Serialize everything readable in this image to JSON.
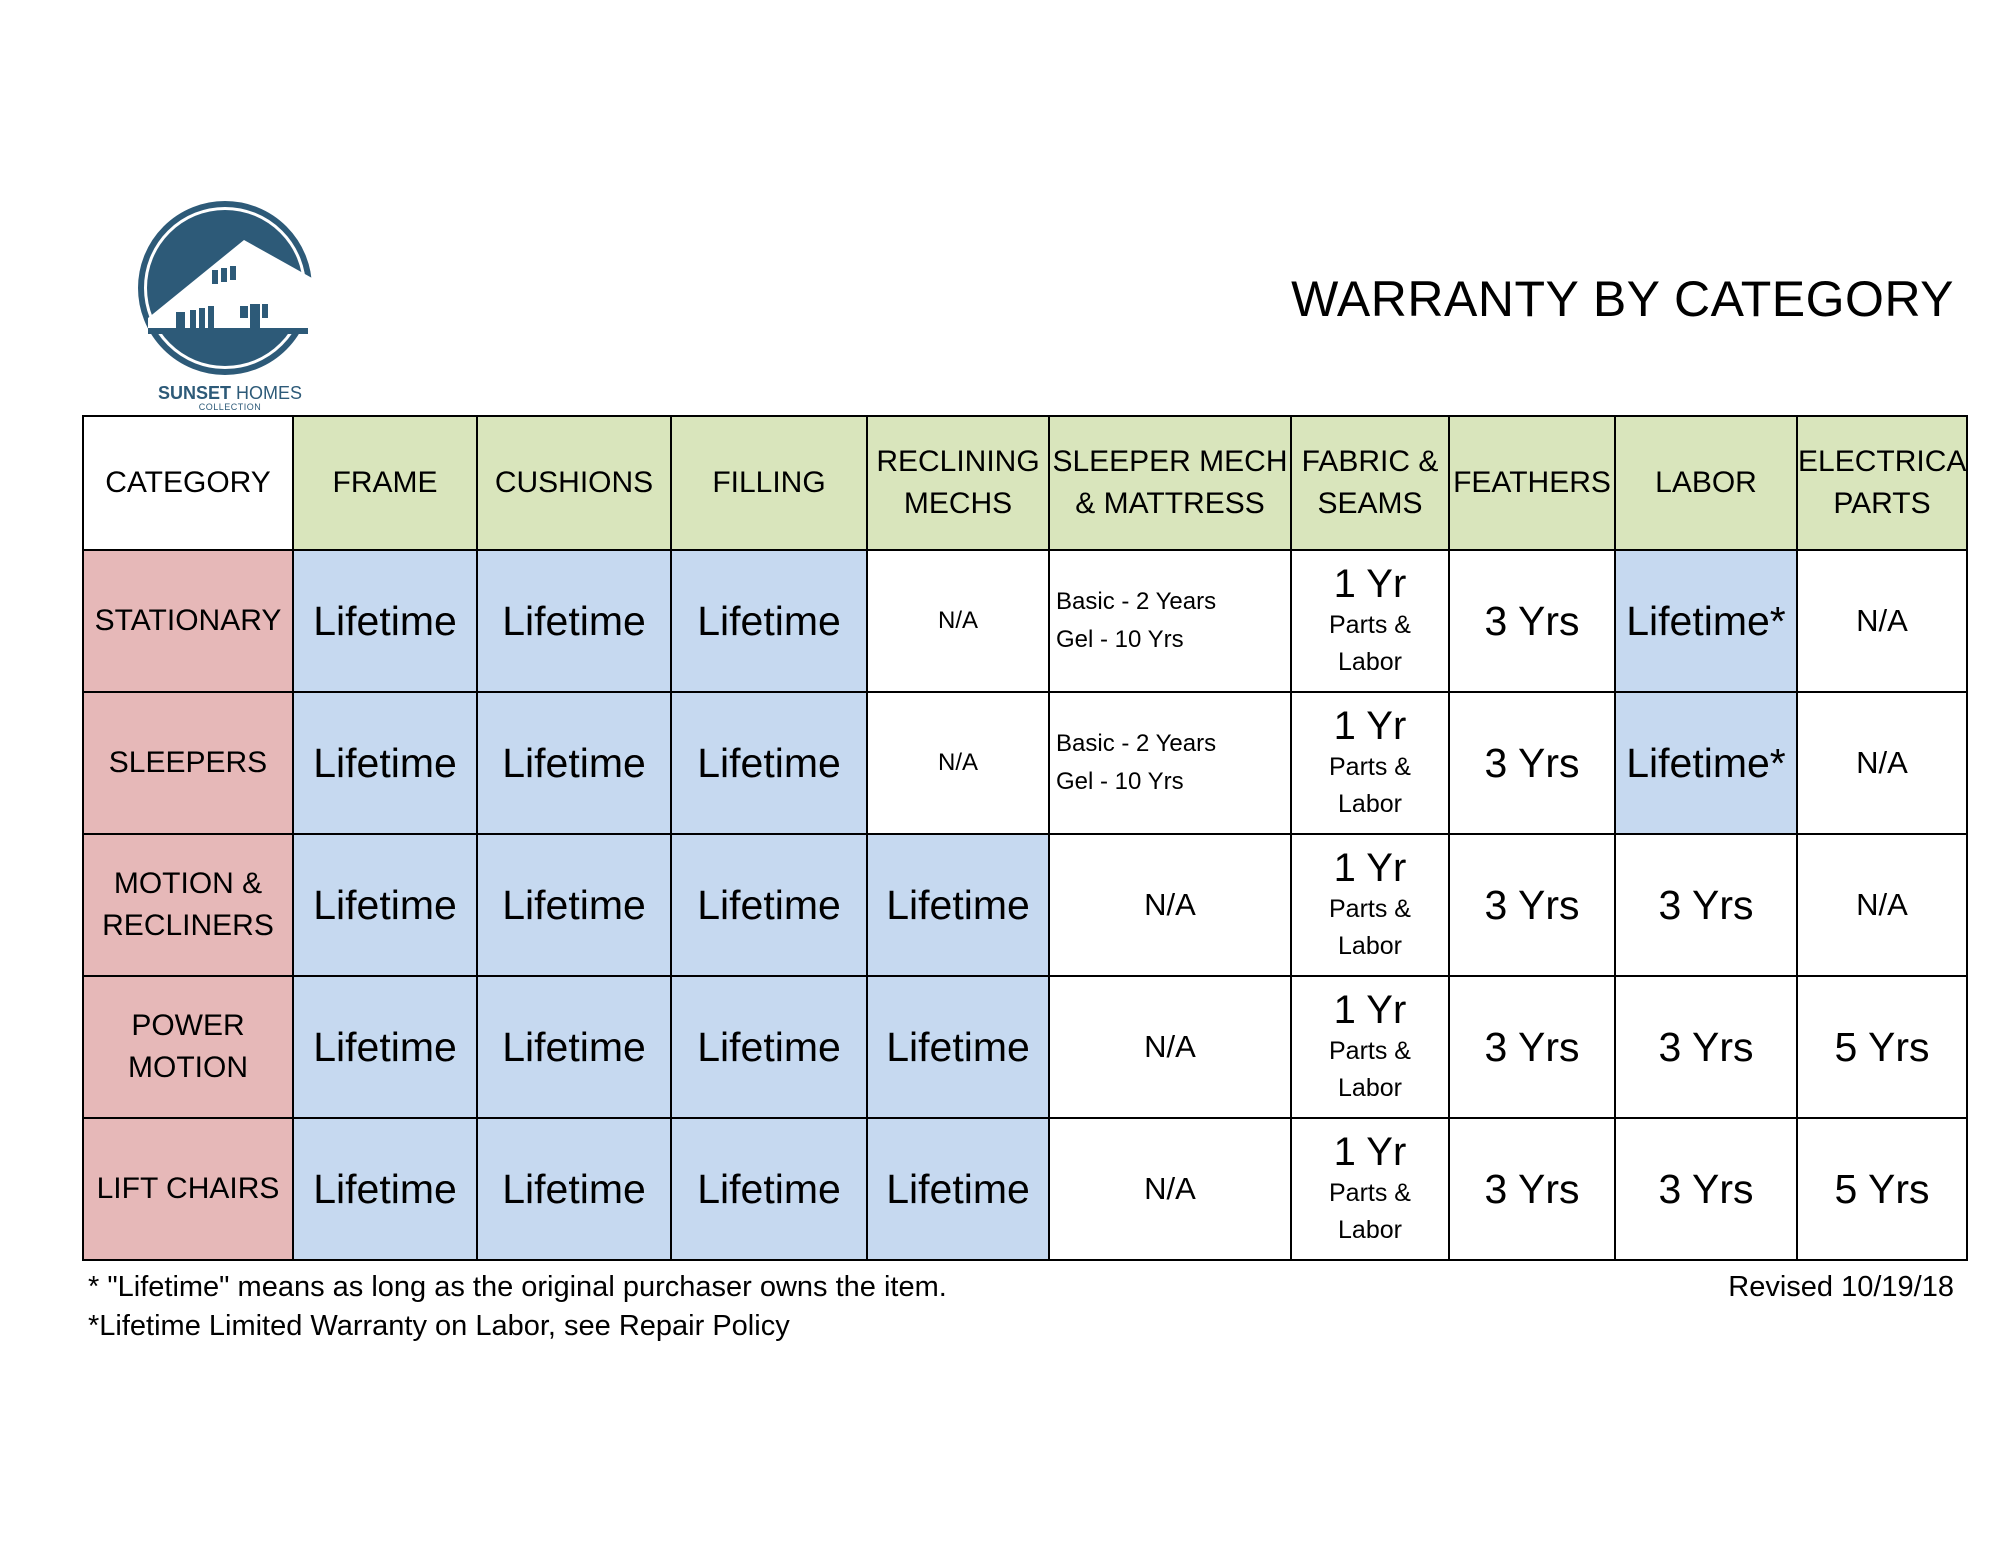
{
  "logo": {
    "brand_bold": "SUNSET",
    "brand_light": " HOMES",
    "brand_sub": "COLLECTION",
    "color": "#2d5a78"
  },
  "title": "WARRANTY BY CATEGORY",
  "colors": {
    "header_green": "#d9e5bc",
    "category_pink": "#e6b8b8",
    "lifetime_blue": "#c6d9f0"
  },
  "table": {
    "headers": [
      {
        "lines": [
          "CATEGORY"
        ]
      },
      {
        "lines": [
          "FRAME"
        ]
      },
      {
        "lines": [
          "CUSHIONS"
        ]
      },
      {
        "lines": [
          "FILLING"
        ]
      },
      {
        "lines": [
          "RECLINING",
          "MECHS"
        ]
      },
      {
        "lines": [
          "SLEEPER MECH",
          "& MATTRESS"
        ]
      },
      {
        "lines": [
          "FABRIC &",
          "SEAMS"
        ]
      },
      {
        "lines": [
          "FEATHERS"
        ]
      },
      {
        "lines": [
          "LABOR"
        ]
      },
      {
        "lines": [
          "ELECTRICAL",
          "PARTS"
        ]
      }
    ],
    "rows": [
      {
        "category": [
          "STATIONARY"
        ],
        "frame": "Lifetime",
        "cushions": "Lifetime",
        "filling": "Lifetime",
        "reclining": "N/A",
        "sleeper": [
          "Basic - 2 Years",
          "Gel - 10 Yrs"
        ],
        "fabric": {
          "main": "1 Yr",
          "sub1": "Parts &",
          "sub2": "Labor"
        },
        "feathers": "3 Yrs",
        "labor": "Lifetime*",
        "electrical": "N/A"
      },
      {
        "category": [
          "SLEEPERS"
        ],
        "frame": "Lifetime",
        "cushions": "Lifetime",
        "filling": "Lifetime",
        "reclining": "N/A",
        "sleeper": [
          "Basic - 2 Years",
          "Gel - 10 Yrs"
        ],
        "fabric": {
          "main": "1 Yr",
          "sub1": "Parts &",
          "sub2": "Labor"
        },
        "feathers": "3 Yrs",
        "labor": "Lifetime*",
        "electrical": "N/A"
      },
      {
        "category": [
          "MOTION &",
          "RECLINERS"
        ],
        "frame": "Lifetime",
        "cushions": "Lifetime",
        "filling": "Lifetime",
        "reclining": "Lifetime",
        "sleeper": [
          "N/A"
        ],
        "fabric": {
          "main": "1 Yr",
          "sub1": "Parts &",
          "sub2": "Labor"
        },
        "feathers": "3 Yrs",
        "labor": "3 Yrs",
        "electrical": "N/A"
      },
      {
        "category": [
          "POWER",
          "MOTION"
        ],
        "frame": "Lifetime",
        "cushions": "Lifetime",
        "filling": "Lifetime",
        "reclining": "Lifetime",
        "sleeper": [
          "N/A"
        ],
        "fabric": {
          "main": "1 Yr",
          "sub1": "Parts &",
          "sub2": "Labor"
        },
        "feathers": "3 Yrs",
        "labor": "3 Yrs",
        "electrical": "5 Yrs"
      },
      {
        "category": [
          "LIFT CHAIRS"
        ],
        "frame": "Lifetime",
        "cushions": "Lifetime",
        "filling": "Lifetime",
        "reclining": "Lifetime",
        "sleeper": [
          "N/A"
        ],
        "fabric": {
          "main": "1 Yr",
          "sub1": "Parts &",
          "sub2": "Labor"
        },
        "feathers": "3 Yrs",
        "labor": "3 Yrs",
        "electrical": "5 Yrs"
      }
    ]
  },
  "footnotes": [
    "* \"Lifetime\" means as long as the original purchaser owns the item.",
    "*Lifetime Limited Warranty on Labor, see Repair Policy"
  ],
  "revised": "Revised 10/19/18"
}
